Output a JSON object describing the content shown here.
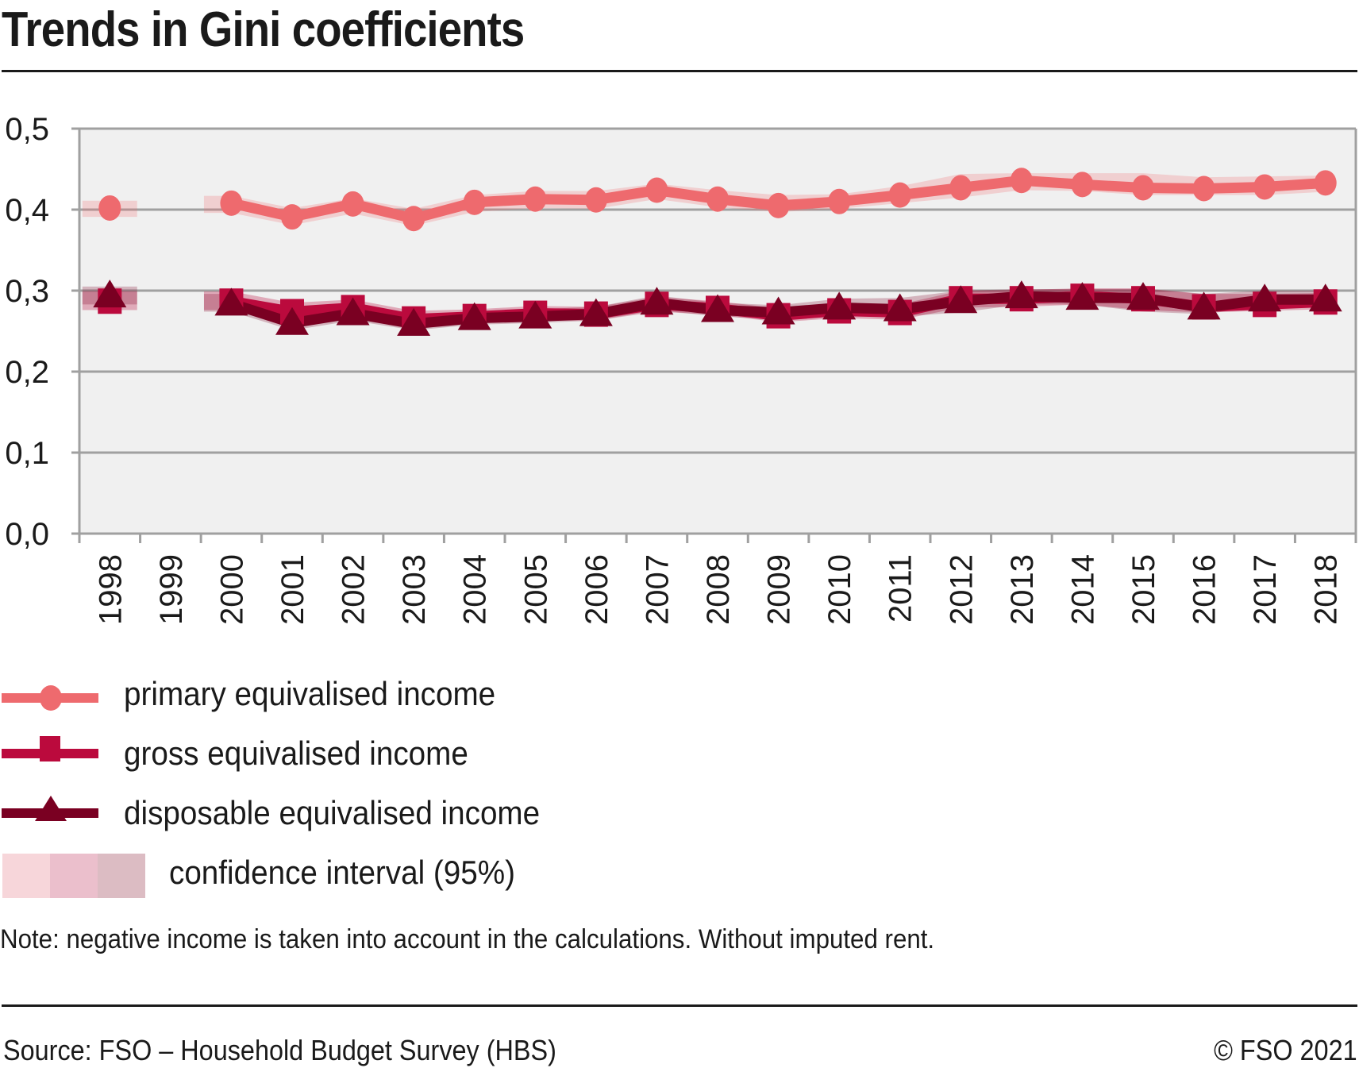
{
  "header": {
    "title": "Trends in Gini coefficients"
  },
  "legend": {
    "items": [
      {
        "label": "primary equivalised income",
        "marker": "circle-icon"
      },
      {
        "label": "gross equivalised income",
        "marker": "square-icon"
      },
      {
        "label": "disposable equivalised income",
        "marker": "triangle-icon"
      }
    ],
    "ci_label": "confidence interval (95%)",
    "ci_colors": [
      "#f7d6da",
      "#ebbfcc",
      "#dcbcc3"
    ]
  },
  "footer": {
    "note": "Note: negative income is taken into account in the calculations. Without imputed rent.",
    "source": "Source: FSO – Household Budget Survey (HBS)",
    "copyright": "© FSO 2021"
  },
  "colors": {
    "primary": "#ee6a6e",
    "gross": "#bb0a3d",
    "disposable": "#7a0022",
    "plot_bg": "#f0f0f0",
    "grid": "#a0a0a0"
  },
  "chart_data": {
    "type": "line",
    "title": "Trends in Gini coefficients",
    "xlabel": "",
    "ylabel": "",
    "ylim": [
      0,
      0.5
    ],
    "yticks": [
      "0,0",
      "0,1",
      "0,2",
      "0,3",
      "0,4",
      "0,5"
    ],
    "ytick_values": [
      0,
      0.1,
      0.2,
      0.3,
      0.4,
      0.5
    ],
    "grid": true,
    "legend_position": "bottom",
    "categories": [
      "1998",
      "1999",
      "2000",
      "2001",
      "2002",
      "2003",
      "2004",
      "2005",
      "2006",
      "2007",
      "2008",
      "2009",
      "2010",
      "2011",
      "2012",
      "2013",
      "2014",
      "2015",
      "2016",
      "2017",
      "2018"
    ],
    "series": [
      {
        "name": "primary equivalised income",
        "marker": "circle",
        "values": [
          0.402,
          null,
          0.408,
          0.391,
          0.407,
          0.389,
          0.409,
          0.413,
          0.412,
          0.424,
          0.413,
          0.405,
          0.41,
          0.418,
          0.427,
          0.436,
          0.431,
          0.427,
          0.426,
          0.428,
          0.433
        ],
        "ci_low": [
          0.391,
          null,
          0.396,
          0.381,
          0.395,
          0.38,
          0.397,
          0.402,
          0.401,
          0.413,
          0.403,
          0.397,
          0.401,
          0.408,
          0.415,
          0.424,
          0.423,
          0.418,
          0.418,
          0.418,
          0.422
        ],
        "ci_high": [
          0.411,
          null,
          0.417,
          0.402,
          0.414,
          0.401,
          0.418,
          0.423,
          0.423,
          0.432,
          0.424,
          0.418,
          0.419,
          0.429,
          0.444,
          0.445,
          0.445,
          0.445,
          0.44,
          0.441,
          0.442
        ]
      },
      {
        "name": "gross equivalised income",
        "marker": "square",
        "values": [
          0.287,
          null,
          0.287,
          0.274,
          0.279,
          0.265,
          0.268,
          0.272,
          0.271,
          0.283,
          0.278,
          0.269,
          0.275,
          0.273,
          0.29,
          0.29,
          0.293,
          0.29,
          0.28,
          0.283,
          0.286
        ],
        "ci_low": [
          0.276,
          null,
          0.276,
          0.264,
          0.27,
          0.256,
          0.26,
          0.263,
          0.263,
          0.274,
          0.27,
          0.261,
          0.266,
          0.264,
          0.279,
          0.28,
          0.283,
          0.276,
          0.273,
          0.275,
          0.277
        ],
        "ci_high": [
          0.299,
          null,
          0.299,
          0.285,
          0.289,
          0.275,
          0.277,
          0.281,
          0.28,
          0.292,
          0.287,
          0.278,
          0.284,
          0.283,
          0.3,
          0.301,
          0.303,
          0.303,
          0.296,
          0.296,
          0.297
        ]
      },
      {
        "name": "disposable equivalised income",
        "marker": "triangle",
        "values": [
          0.294,
          null,
          0.284,
          0.26,
          0.272,
          0.259,
          0.266,
          0.268,
          0.271,
          0.285,
          0.276,
          0.273,
          0.279,
          0.277,
          0.287,
          0.293,
          0.291,
          0.291,
          0.279,
          0.289,
          0.289
        ],
        "ci_low": [
          0.283,
          null,
          0.274,
          0.251,
          0.263,
          0.251,
          0.258,
          0.26,
          0.263,
          0.276,
          0.268,
          0.265,
          0.27,
          0.268,
          0.273,
          0.283,
          0.283,
          0.274,
          0.271,
          0.281,
          0.281
        ],
        "ci_high": [
          0.305,
          null,
          0.296,
          0.271,
          0.282,
          0.268,
          0.275,
          0.277,
          0.28,
          0.294,
          0.285,
          0.282,
          0.29,
          0.291,
          0.3,
          0.302,
          0.302,
          0.302,
          0.296,
          0.3,
          0.3
        ]
      }
    ]
  }
}
